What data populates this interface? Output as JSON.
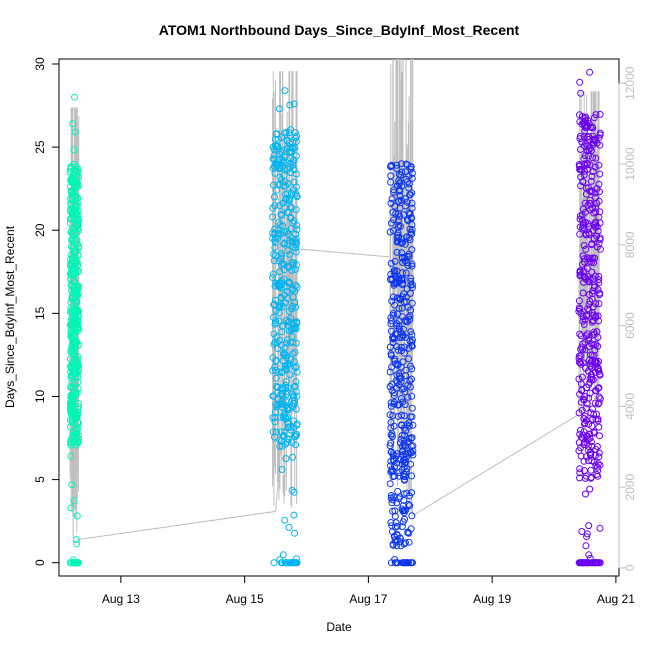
{
  "chart_data": {
    "type": "scatter",
    "title": "ATOM1 Northbound Days_Since_BdyInf_Most_Recent",
    "xlabel": "Date",
    "ylabel": "Days_Since_BdyInf_Most_Recent",
    "x_ticks": [
      "Aug 13",
      "Aug 15",
      "Aug 17",
      "Aug 19",
      "Aug 21"
    ],
    "x_tick_values": [
      13,
      15,
      17,
      19,
      21
    ],
    "xlim": [
      12.0,
      21.05
    ],
    "ylim": [
      -0.8,
      30.3
    ],
    "y_ticks": [
      0,
      5,
      10,
      15,
      20,
      25,
      30
    ],
    "y2lim": [
      -200,
      12600
    ],
    "y2_ticks": [
      0,
      2000,
      4000,
      6000,
      8000,
      10000,
      12000
    ],
    "grid": false,
    "legend": "none",
    "marker": "open-circle",
    "colors": {
      "series1": "#00f5b8",
      "series2": "#00b4f0",
      "series3": "#0a34f0",
      "series4": "#6a00f0",
      "secondary_line": "#bebebe"
    },
    "clusters": [
      {
        "x_range": [
          12.18,
          12.32
        ],
        "y_summary": {
          "min": 0,
          "max": 28,
          "dense_range": [
            7,
            24
          ],
          "gap_range": [
            4,
            7
          ]
        },
        "y2_summary": {
          "min": 700,
          "max": 11400
        }
      },
      {
        "x_range": [
          15.45,
          15.85
        ],
        "y_summary": {
          "min": 0,
          "max": 28.4,
          "dense_range": [
            7,
            26
          ],
          "gap_range": [
            3,
            7
          ]
        },
        "y2_summary": {
          "min": 1400,
          "max": 12300
        }
      },
      {
        "x_range": [
          17.35,
          17.72
        ],
        "y_summary": {
          "min": 0,
          "max": 24,
          "dense_range": [
            1,
            24
          ],
          "gap_range": null
        },
        "y2_summary": {
          "min": 1300,
          "max": 12600
        }
      },
      {
        "x_range": [
          20.4,
          20.75
        ],
        "y_summary": {
          "min": 0,
          "max": 29.5,
          "dense_range": [
            5,
            27
          ],
          "gap_range": null
        },
        "y2_summary": {
          "min": 3800,
          "max": 11800
        }
      }
    ],
    "secondary_line": [
      {
        "x": 12.3,
        "y2": 700
      },
      {
        "x": 15.5,
        "y2": 1400
      },
      {
        "x": 15.85,
        "y2": 7900
      },
      {
        "x": 17.35,
        "y2": 7700
      },
      {
        "x": 17.72,
        "y2": 1300
      },
      {
        "x": 20.4,
        "y2": 3800
      }
    ]
  }
}
